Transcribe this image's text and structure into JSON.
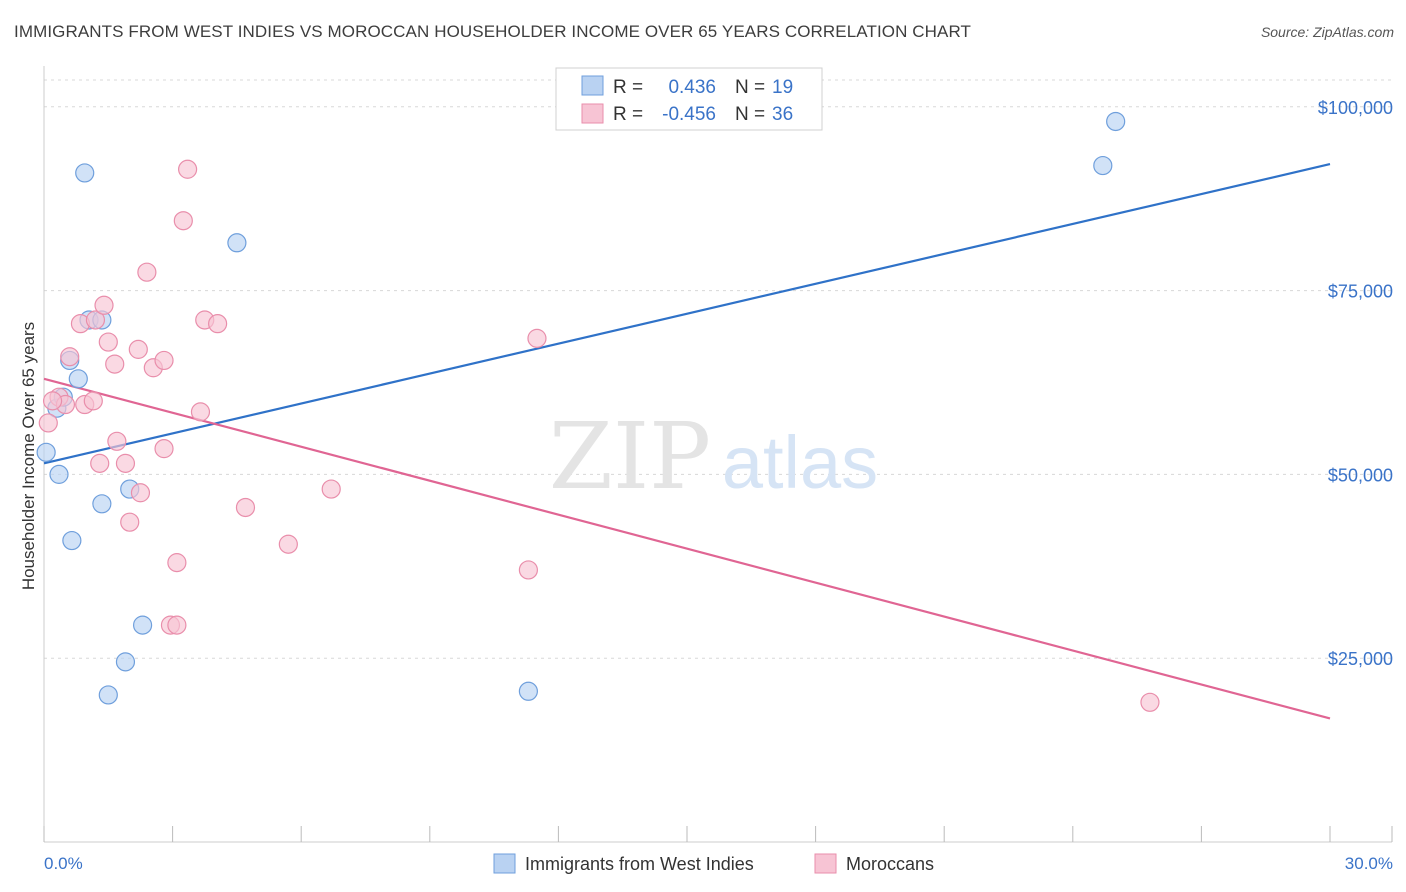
{
  "title": "IMMIGRANTS FROM WEST INDIES VS MOROCCAN HOUSEHOLDER INCOME OVER 65 YEARS CORRELATION CHART",
  "source": "Source: ZipAtlas.com",
  "watermark": {
    "zip": "ZIP",
    "atlas": "atlas"
  },
  "colors": {
    "blue_fill": "#b9d2f2",
    "blue_stroke": "#6f9fdc",
    "blue_line": "#2f72c8",
    "pink_fill": "#f7c4d4",
    "pink_stroke": "#e98eab",
    "pink_line": "#e06593",
    "axis_text": "#3a73c8",
    "grid": "#d8d8d8"
  },
  "legend": {
    "r_label": "R =",
    "n_label": "N =",
    "rows": [
      {
        "r": "0.436",
        "n": "19"
      },
      {
        "r": "-0.456",
        "n": "36"
      }
    ]
  },
  "chart_data": {
    "type": "scatter",
    "title": "IMMIGRANTS FROM WEST INDIES VS MOROCCAN HOUSEHOLDER INCOME OVER 65 YEARS CORRELATION CHART",
    "xlabel": "",
    "ylabel": "Householder Income Over 65 years",
    "xlim": [
      0,
      30
    ],
    "ylim": [
      0,
      105000
    ],
    "x_tick_labels": [
      "0.0%",
      "30.0%"
    ],
    "y_ticks": [
      25000,
      50000,
      75000,
      100000
    ],
    "y_tick_labels": [
      "$25,000",
      "$50,000",
      "$75,000",
      "$100,000"
    ],
    "grid": true,
    "legend_position": "top-center",
    "series": [
      {
        "name": "Immigrants from West Indies",
        "color": "#6f9fdc",
        "trend": {
          "x": [
            0,
            30
          ],
          "y": [
            51500,
            92200
          ]
        },
        "points": [
          {
            "x": 0.05,
            "y": 53000
          },
          {
            "x": 0.3,
            "y": 59000
          },
          {
            "x": 0.35,
            "y": 50000
          },
          {
            "x": 0.45,
            "y": 60500
          },
          {
            "x": 0.6,
            "y": 65500
          },
          {
            "x": 0.65,
            "y": 41000
          },
          {
            "x": 0.8,
            "y": 63000
          },
          {
            "x": 0.95,
            "y": 91000
          },
          {
            "x": 1.05,
            "y": 71000
          },
          {
            "x": 1.35,
            "y": 71000
          },
          {
            "x": 1.35,
            "y": 46000
          },
          {
            "x": 1.5,
            "y": 20000
          },
          {
            "x": 1.9,
            "y": 24500
          },
          {
            "x": 2.0,
            "y": 48000
          },
          {
            "x": 2.3,
            "y": 29500
          },
          {
            "x": 4.5,
            "y": 81500
          },
          {
            "x": 11.3,
            "y": 20500
          },
          {
            "x": 24.7,
            "y": 92000
          },
          {
            "x": 25.0,
            "y": 98000
          }
        ]
      },
      {
        "name": "Moroccans",
        "color": "#e98eab",
        "trend": {
          "x": [
            0,
            30
          ],
          "y": [
            63000,
            16800
          ]
        },
        "points": [
          {
            "x": 0.1,
            "y": 57000
          },
          {
            "x": 0.35,
            "y": 60500
          },
          {
            "x": 0.5,
            "y": 59500
          },
          {
            "x": 0.6,
            "y": 66000
          },
          {
            "x": 0.85,
            "y": 70500
          },
          {
            "x": 0.95,
            "y": 59500
          },
          {
            "x": 1.2,
            "y": 71000
          },
          {
            "x": 1.15,
            "y": 60000
          },
          {
            "x": 1.3,
            "y": 51500
          },
          {
            "x": 1.4,
            "y": 73000
          },
          {
            "x": 1.5,
            "y": 68000
          },
          {
            "x": 1.65,
            "y": 65000
          },
          {
            "x": 1.7,
            "y": 54500
          },
          {
            "x": 1.9,
            "y": 51500
          },
          {
            "x": 2.0,
            "y": 43500
          },
          {
            "x": 2.2,
            "y": 67000
          },
          {
            "x": 2.25,
            "y": 47500
          },
          {
            "x": 2.4,
            "y": 77500
          },
          {
            "x": 2.55,
            "y": 64500
          },
          {
            "x": 2.8,
            "y": 65500
          },
          {
            "x": 2.8,
            "y": 53500
          },
          {
            "x": 2.95,
            "y": 29500
          },
          {
            "x": 3.1,
            "y": 29500
          },
          {
            "x": 3.1,
            "y": 38000
          },
          {
            "x": 3.25,
            "y": 84500
          },
          {
            "x": 3.35,
            "y": 91500
          },
          {
            "x": 3.65,
            "y": 58500
          },
          {
            "x": 3.75,
            "y": 71000
          },
          {
            "x": 4.05,
            "y": 70500
          },
          {
            "x": 4.7,
            "y": 45500
          },
          {
            "x": 5.7,
            "y": 40500
          },
          {
            "x": 6.7,
            "y": 48000
          },
          {
            "x": 11.3,
            "y": 37000
          },
          {
            "x": 11.5,
            "y": 68500
          },
          {
            "x": 25.8,
            "y": 19000
          },
          {
            "x": 0.2,
            "y": 60000
          }
        ]
      }
    ]
  }
}
